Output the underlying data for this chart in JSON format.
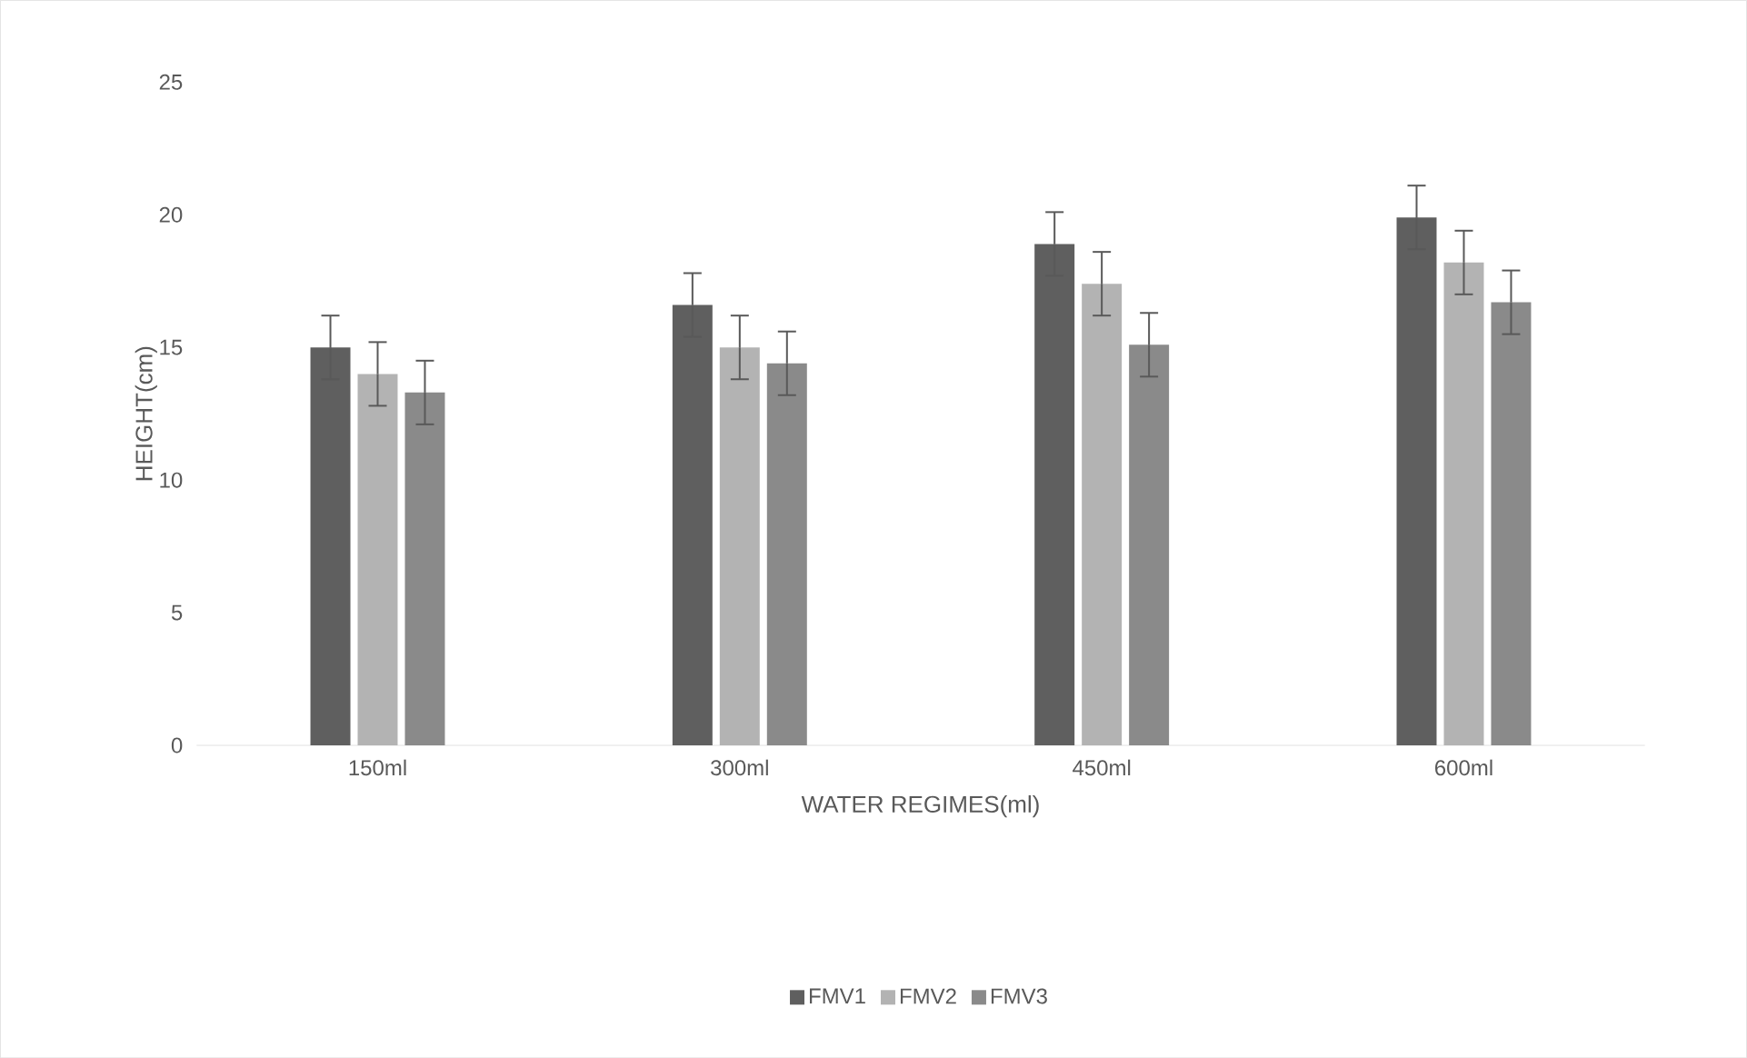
{
  "chart_data": {
    "type": "bar",
    "xlabel": "WATER REGIMES(ml)",
    "ylabel": "HEIGHT(cm)",
    "categories": [
      "150ml",
      "300ml",
      "450ml",
      "600ml"
    ],
    "series": [
      {
        "name": "FMV1",
        "color": "#5f5f5f",
        "values": [
          15.0,
          16.6,
          18.9,
          19.9
        ],
        "errors": [
          1.2,
          1.2,
          1.2,
          1.2
        ]
      },
      {
        "name": "FMV2",
        "color": "#b3b3b3",
        "values": [
          14.0,
          15.0,
          17.4,
          18.2
        ],
        "errors": [
          1.2,
          1.2,
          1.2,
          1.2
        ]
      },
      {
        "name": "FMV3",
        "color": "#8a8a8a",
        "values": [
          13.3,
          14.4,
          15.1,
          16.7
        ],
        "errors": [
          1.2,
          1.2,
          1.2,
          1.2
        ]
      }
    ],
    "ylim": [
      0,
      25
    ],
    "yticks": [
      0,
      5,
      10,
      15,
      20,
      25
    ],
    "grid": false,
    "legend": "bottom"
  }
}
